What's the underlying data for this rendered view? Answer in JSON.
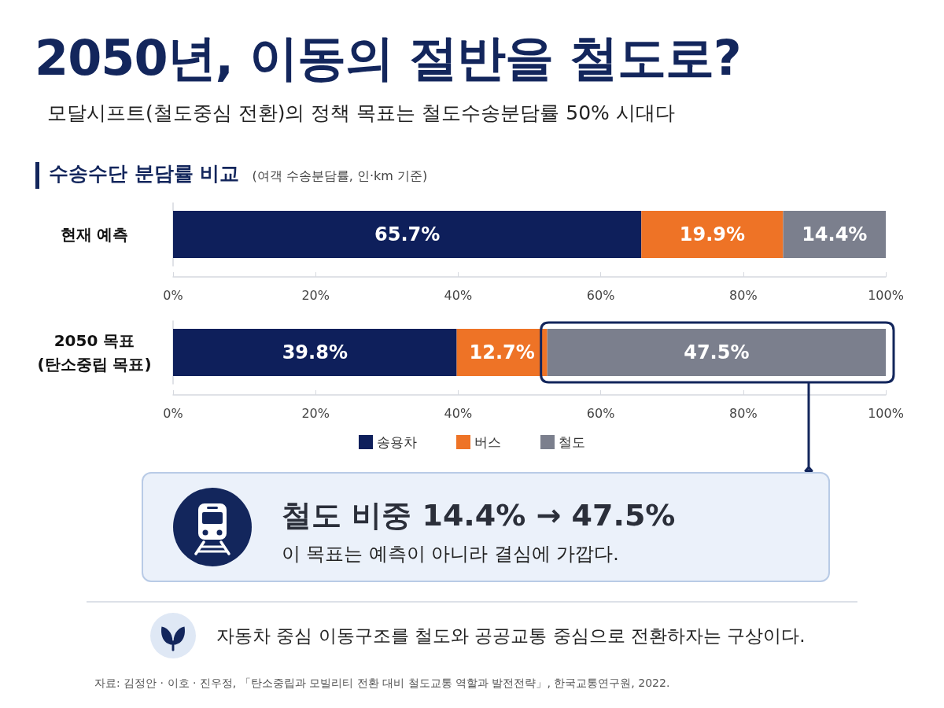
{
  "chart_data": [
    {
      "type": "bar",
      "title": "2050년, 이동의 절반을 철도로?",
      "subtitle": "모달시프트(철도중심 전환)의 정책 목표는 철도수송분담률 50% 시대다",
      "orientation": "horizontal",
      "stacked": true,
      "categories": [
        "현재 예측"
      ],
      "series": [
        {
          "color": "#0e1f5b",
          "values": [
            65.7
          ],
          "value_labels": [
            "65.7%"
          ]
        },
        {
          "color": "#ee7326",
          "values": [
            19.9
          ],
          "value_labels": [
            "19.9%"
          ]
        },
        {
          "color": "#7b7f8d",
          "values": [
            14.4
          ],
          "value_labels": [
            "14.4%"
          ]
        }
      ],
      "xlim": [
        0,
        100
      ],
      "xticks": [
        {
          "value": 0,
          "label": "0%"
        },
        {
          "value": 20,
          "label": "20%"
        },
        {
          "value": 40,
          "label": "40%"
        },
        {
          "value": 60,
          "label": "60%"
        },
        {
          "value": 80,
          "label": "80%"
        },
        {
          "value": 100,
          "label": "100%"
        }
      ],
      "annotations": [
        "수송수단 분담률 비교",
        "(여객 수송분담률, 인·km 기준)"
      ]
    },
    {
      "type": "bar",
      "orientation": "horizontal",
      "stacked": true,
      "categories": [
        "2050 목표\n(탄소중립 목표)"
      ],
      "series": [
        {
          "name": "송용차",
          "color": "#0e1f5b",
          "values": [
            39.8
          ],
          "value_labels": [
            "39.8%"
          ]
        },
        {
          "name": "버스",
          "color": "#ee7326",
          "values": [
            12.7
          ],
          "value_labels": [
            "12.7%"
          ]
        },
        {
          "name": "철도",
          "color": "#7b7f8d",
          "values": [
            47.5
          ],
          "value_labels": [
            "47.5%"
          ]
        }
      ],
      "xlim": [
        0,
        100
      ],
      "xticks": [
        {
          "value": 0,
          "label": "0%"
        },
        {
          "value": 20,
          "label": "20%"
        },
        {
          "value": 40,
          "label": "40%"
        },
        {
          "value": 60,
          "label": "60%"
        },
        {
          "value": 80,
          "label": "80%"
        },
        {
          "value": 100,
          "label": "100%"
        }
      ],
      "legend": "bottom",
      "annotations": [
        "철도 비중 14.4% → 47.5%",
        "이 목표는 예측이 아니라 결심에 가깝다.",
        "자동차 중심 이동구조를 철도와 공공교통 중심으로 전환하자는 구상이다.",
        "자료: 김정안 · 이호 · 진우정, 「탄소중립과 모빌리티 전환 대비 철도교통 역할과 발전전략」, 한국교통연구원, 2022."
      ]
    }
  ]
}
